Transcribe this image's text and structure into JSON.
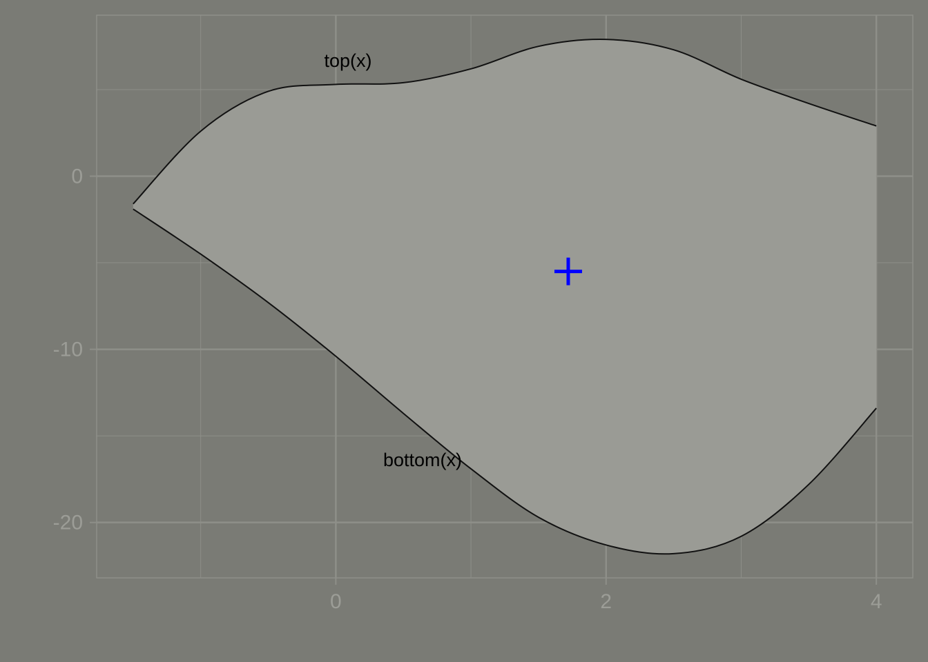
{
  "chart_data": {
    "type": "area",
    "xlim": [
      -1.77,
      4.27
    ],
    "ylim": [
      -23.2,
      9.3
    ],
    "x_ticks": [
      0,
      2,
      4
    ],
    "x_tick_labels": [
      "0",
      "2",
      "4"
    ],
    "y_ticks": [
      -20,
      -10,
      0
    ],
    "y_tick_labels": [
      "-20",
      "-10",
      "0"
    ],
    "grid": true,
    "legend": "none",
    "top_curve": {
      "label": "top(x)",
      "x": [
        -1.5,
        -1.0,
        -0.5,
        0.0,
        0.5,
        1.0,
        1.5,
        2.0,
        2.5,
        3.0,
        3.5,
        4.0
      ],
      "y": [
        -1.6,
        2.6,
        4.9,
        5.3,
        5.4,
        6.2,
        7.5,
        7.9,
        7.3,
        5.6,
        4.2,
        2.9
      ]
    },
    "bottom_curve": {
      "label": "bottom(x)",
      "x": [
        -1.5,
        -1.0,
        -0.5,
        0.0,
        0.5,
        1.0,
        1.5,
        2.0,
        2.5,
        3.0,
        3.5,
        4.0
      ],
      "y": [
        -1.9,
        -4.5,
        -7.3,
        -10.4,
        -13.7,
        -16.9,
        -19.7,
        -21.3,
        -21.8,
        -20.8,
        -17.8,
        -13.4
      ]
    },
    "marker": {
      "x": 1.72,
      "y": -5.5,
      "symbol": "+",
      "color": "#0000ff"
    },
    "colors": {
      "background": "#7a7b75",
      "fill": "#9a9b95",
      "grid": "#8e8f89",
      "curve": "#111111",
      "tick_text": "#9c9d97"
    }
  }
}
